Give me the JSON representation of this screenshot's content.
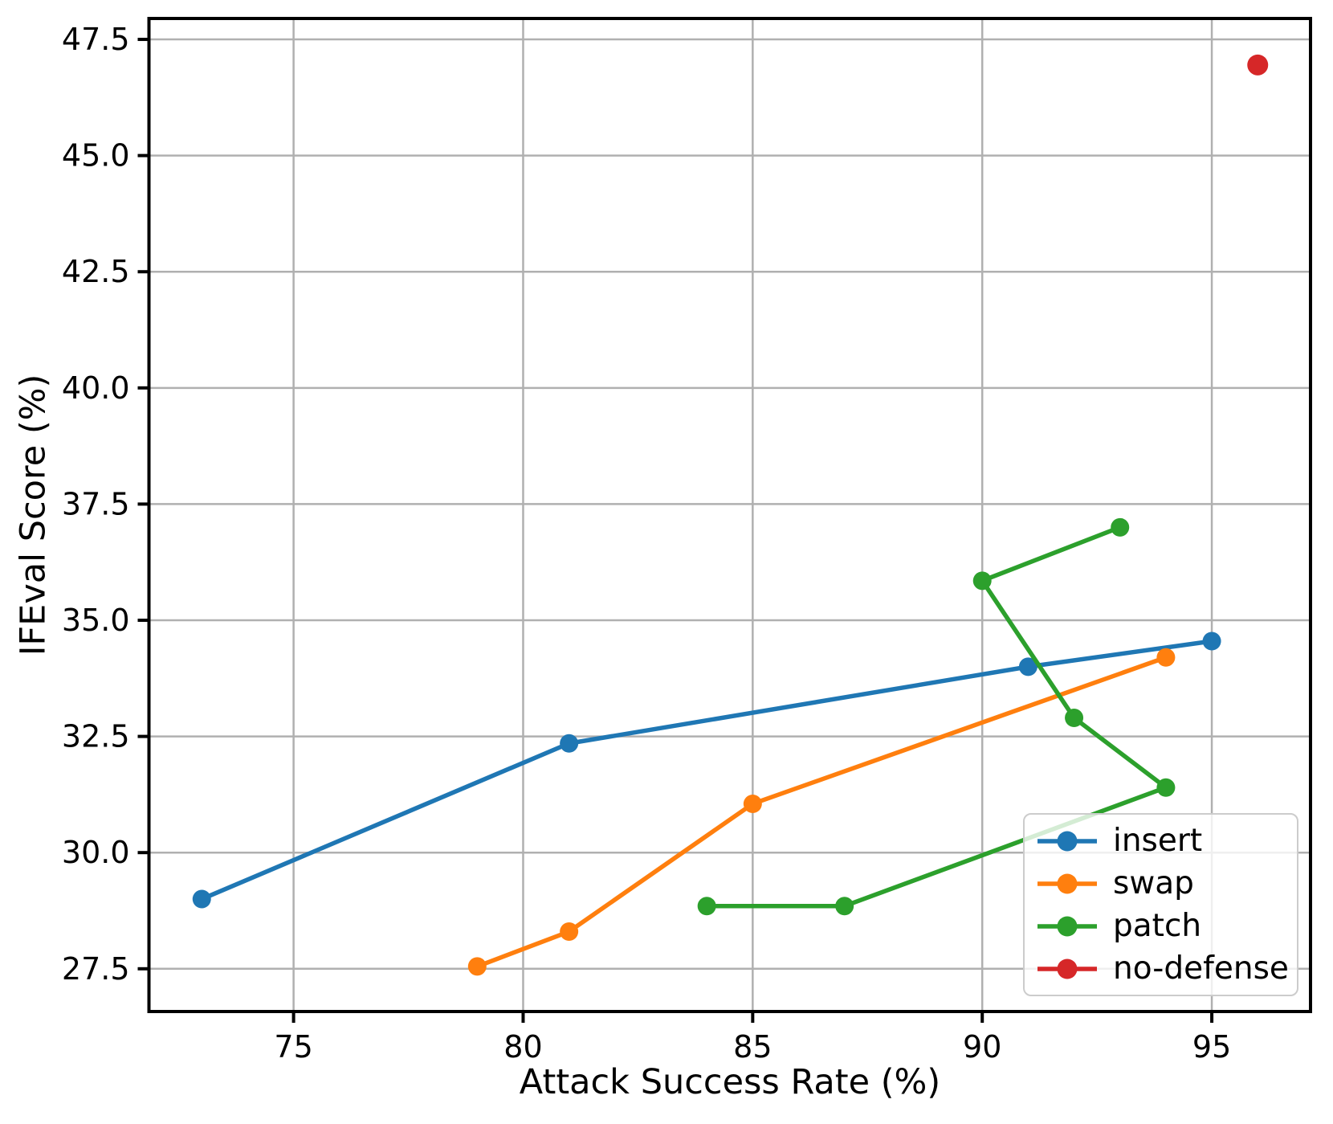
{
  "chart_data": {
    "type": "line",
    "title": "",
    "xlabel": "Attack Success Rate (%)",
    "ylabel": "IFEval Score (%)",
    "xlim": [
      71.85,
      97.15
    ],
    "ylim": [
      26.58,
      47.95
    ],
    "grid": true,
    "legend_position": "lower right",
    "xticks": [
      {
        "value": 75,
        "label": "75"
      },
      {
        "value": 80,
        "label": "80"
      },
      {
        "value": 85,
        "label": "85"
      },
      {
        "value": 90,
        "label": "90"
      },
      {
        "value": 95,
        "label": "95"
      }
    ],
    "yticks": [
      {
        "value": 27.5,
        "label": "27.5"
      },
      {
        "value": 30.0,
        "label": "30.0"
      },
      {
        "value": 32.5,
        "label": "32.5"
      },
      {
        "value": 35.0,
        "label": "35.0"
      },
      {
        "value": 37.5,
        "label": "37.5"
      },
      {
        "value": 40.0,
        "label": "40.0"
      },
      {
        "value": 42.5,
        "label": "42.5"
      },
      {
        "value": 45.0,
        "label": "45.0"
      },
      {
        "value": 47.5,
        "label": "47.5"
      }
    ],
    "series": [
      {
        "name": "insert",
        "color": "#1f77b4",
        "marker": "circle",
        "line": true,
        "points": [
          [
            73,
            29.0
          ],
          [
            81,
            32.35
          ],
          [
            91,
            34.0
          ],
          [
            95,
            34.55
          ]
        ]
      },
      {
        "name": "swap",
        "color": "#ff7f0e",
        "marker": "circle",
        "line": true,
        "points": [
          [
            79,
            27.55
          ],
          [
            81,
            28.3
          ],
          [
            85,
            31.05
          ],
          [
            94,
            34.2
          ]
        ]
      },
      {
        "name": "patch",
        "color": "#2ca02c",
        "marker": "circle",
        "line": true,
        "points": [
          [
            84,
            28.85
          ],
          [
            87,
            28.85
          ],
          [
            94,
            31.4
          ],
          [
            92,
            32.9
          ],
          [
            90,
            35.85
          ],
          [
            93,
            37.0
          ]
        ]
      },
      {
        "name": "no-defense",
        "color": "#d62728",
        "marker": "circle",
        "line": false,
        "points": [
          [
            96,
            46.95
          ]
        ]
      }
    ],
    "colors": {
      "grid": "#b0b0b0",
      "spine": "#000000",
      "background": "#ffffff",
      "legend_border": "#cccccc"
    }
  }
}
